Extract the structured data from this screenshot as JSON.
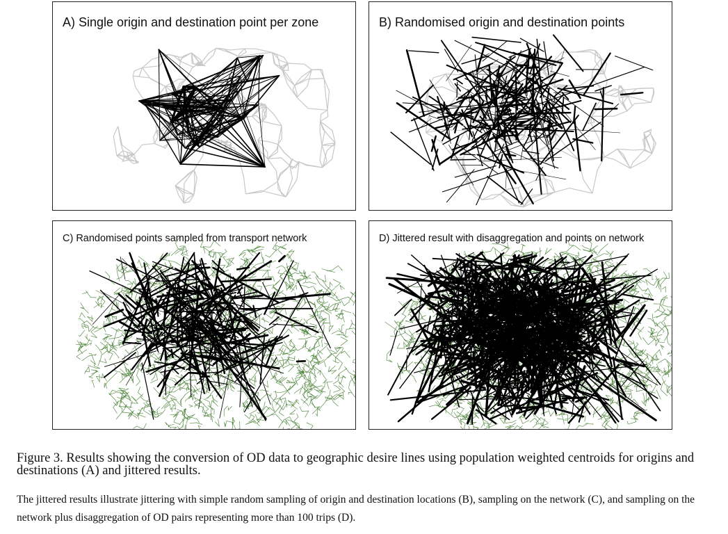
{
  "figure": {
    "panels": [
      {
        "id": "A",
        "title": "A) Single origin and destination point per zone",
        "background": "zone-boundaries",
        "line_style": "centroid"
      },
      {
        "id": "B",
        "title": "B) Randomised origin and destination points",
        "background": "zone-boundaries",
        "line_style": "random"
      },
      {
        "id": "C",
        "title": "C) Randomised points sampled from transport network",
        "background": "transport-network",
        "line_style": "network"
      },
      {
        "id": "D",
        "title": "D) Jittered result with disaggregation and points on network",
        "background": "transport-network",
        "line_style": "dense"
      }
    ],
    "caption": "Figure 3. Results showing the conversion of OD data to geographic desire lines using population weighted centroids for origins and destinations (A) and jittered results.",
    "note": "The jittered results illustrate jittering with simple random sampling of origin and destination locations (B), sampling on the network (C), and sampling on the network plus disaggregation of OD pairs representing more than 100 trips (D).",
    "colors": {
      "zone_boundary": "#c8c8c8",
      "network": "#3f7a2c",
      "desire_line": "#000000",
      "frame": "#222222"
    }
  }
}
